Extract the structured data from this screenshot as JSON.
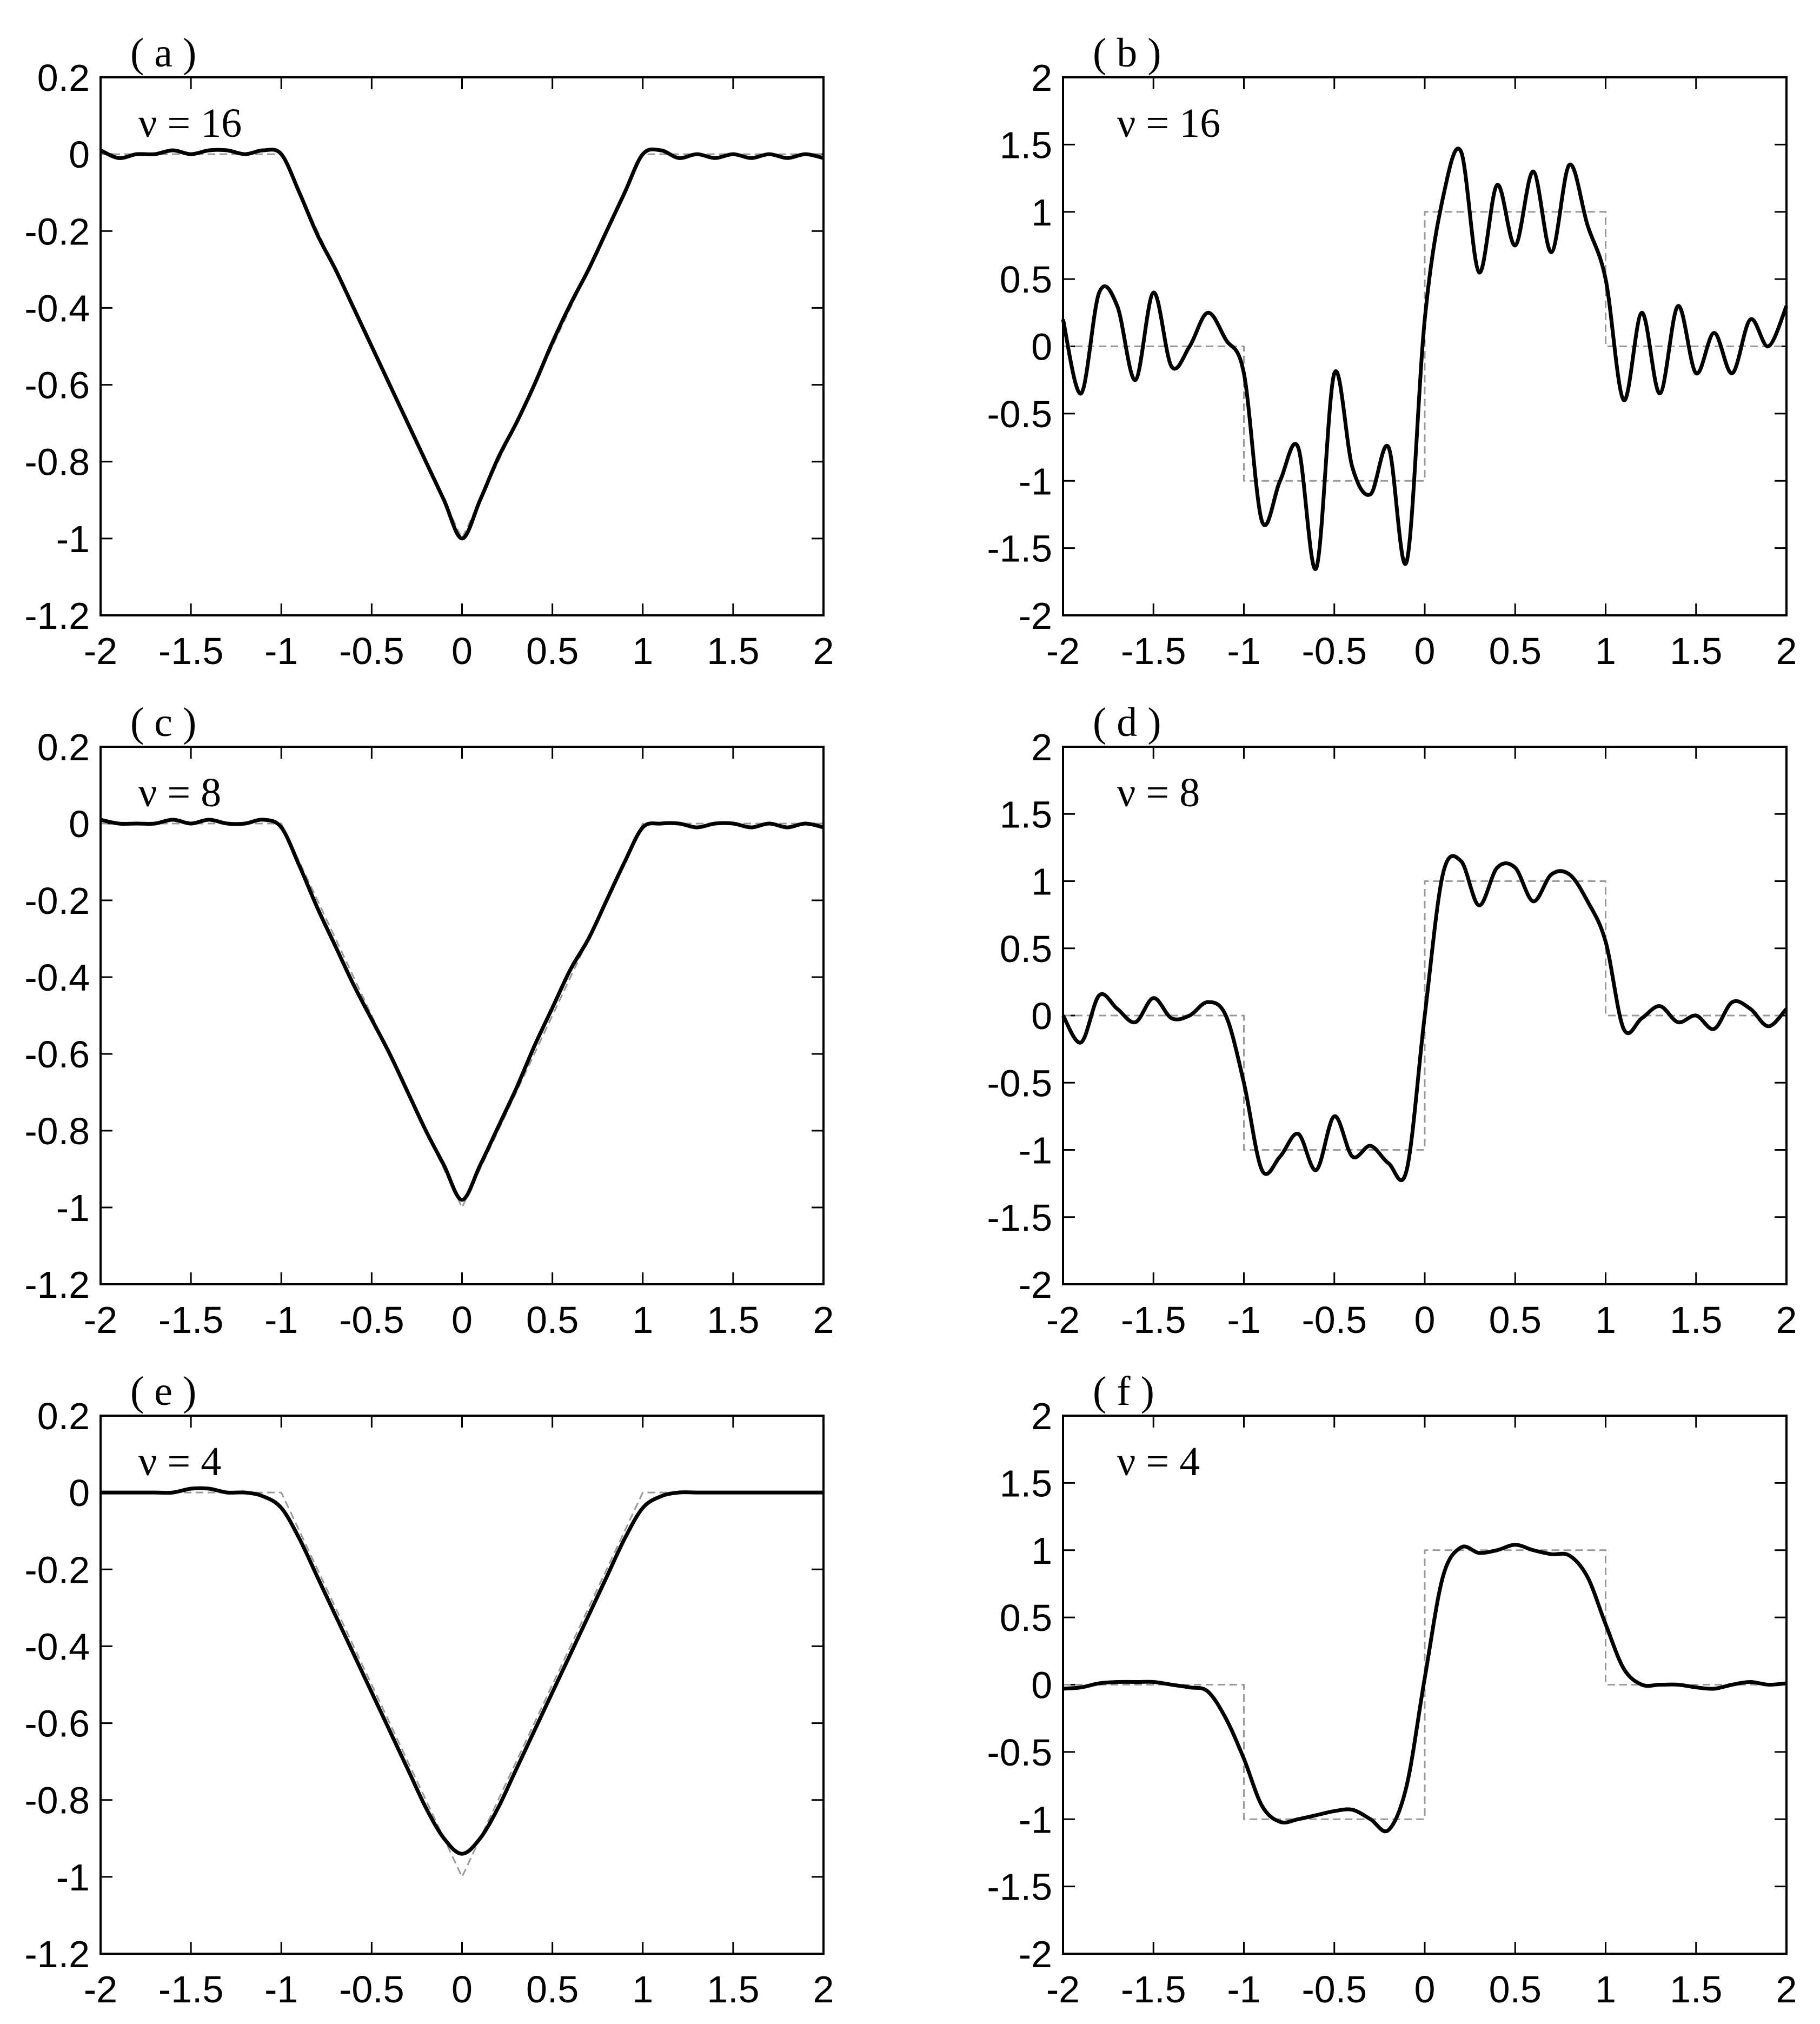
{
  "chart_data": [
    {
      "type": "line",
      "title": "( a )",
      "annotation": "ν = 16",
      "xlim": [
        -2,
        2
      ],
      "xticks": [
        -2,
        -1.5,
        -1,
        -0.5,
        0,
        0.5,
        1,
        1.5,
        2
      ],
      "ylim": [
        -1.2,
        0.2
      ],
      "yticks": [
        -1.2,
        -1,
        -0.8,
        -0.6,
        -0.4,
        -0.2,
        0,
        0.2
      ],
      "series": [
        {
          "color": "#999999",
          "linestyle": "dashed",
          "x": [
            -2,
            -1,
            0,
            1,
            2
          ],
          "values": [
            0,
            0,
            -1,
            0,
            0
          ]
        },
        {
          "color": "#000000",
          "linestyle": "solid",
          "x": [
            -2,
            -1.9,
            -1.8,
            -1.7,
            -1.6,
            -1.5,
            -1.4,
            -1.3,
            -1.2,
            -1.1,
            -1,
            -0.9,
            -0.8,
            -0.7,
            -0.6,
            -0.5,
            -0.4,
            -0.3,
            -0.2,
            -0.1,
            0,
            0.1,
            0.2,
            0.3,
            0.4,
            0.5,
            0.6,
            0.7,
            0.8,
            0.9,
            1,
            1.1,
            1.2,
            1.3,
            1.4,
            1.5,
            1.6,
            1.7,
            1.8,
            1.9,
            2
          ],
          "values": [
            0.01,
            -0.01,
            0,
            0,
            0.01,
            0,
            0.01,
            0.01,
            0,
            0.01,
            0,
            -0.1,
            -0.21,
            -0.3,
            -0.4,
            -0.5,
            -0.6,
            -0.7,
            -0.8,
            -0.9,
            -1,
            -0.9,
            -0.79,
            -0.7,
            -0.6,
            -0.49,
            -0.39,
            -0.3,
            -0.2,
            -0.1,
            0,
            0.01,
            -0.01,
            0,
            -0.01,
            0,
            -0.01,
            0,
            -0.01,
            0,
            -0.01
          ]
        }
      ]
    },
    {
      "type": "line",
      "title": "( b )",
      "annotation": "ν = 16",
      "xlim": [
        -2,
        2
      ],
      "xticks": [
        -2,
        -1.5,
        -1,
        -0.5,
        0,
        0.5,
        1,
        1.5,
        2
      ],
      "ylim": [
        -2,
        2
      ],
      "yticks": [
        -2,
        -1.5,
        -1,
        -0.5,
        0,
        0.5,
        1,
        1.5,
        2
      ],
      "series": [
        {
          "color": "#999999",
          "linestyle": "dashed",
          "x": [
            -2,
            -1,
            -1,
            0,
            0,
            1,
            1,
            2
          ],
          "values": [
            0,
            0,
            -1,
            -1,
            1,
            1,
            0,
            0
          ]
        },
        {
          "color": "#000000",
          "linestyle": "solid",
          "x": [
            -2,
            -1.9,
            -1.8,
            -1.7,
            -1.6,
            -1.5,
            -1.4,
            -1.3,
            -1.2,
            -1.1,
            -1,
            -0.9,
            -0.8,
            -0.7,
            -0.6,
            -0.5,
            -0.4,
            -0.3,
            -0.2,
            -0.1,
            0,
            0.1,
            0.2,
            0.3,
            0.4,
            0.5,
            0.6,
            0.7,
            0.8,
            0.9,
            1,
            1.1,
            1.2,
            1.3,
            1.4,
            1.5,
            1.6,
            1.7,
            1.8,
            1.9,
            2
          ],
          "values": [
            0.2,
            -0.35,
            0.4,
            0.3,
            -0.25,
            0.4,
            -0.15,
            0,
            0.25,
            0.05,
            -0.2,
            -1.3,
            -1,
            -0.75,
            -1.65,
            -0.2,
            -0.9,
            -1.1,
            -0.75,
            -1.6,
            0.2,
            1.1,
            1.45,
            0.55,
            1.2,
            0.75,
            1.3,
            0.7,
            1.35,
            0.9,
            0.5,
            -0.4,
            0.25,
            -0.35,
            0.3,
            -0.2,
            0.1,
            -0.2,
            0.2,
            0,
            0.3
          ]
        }
      ]
    },
    {
      "type": "line",
      "title": "( c )",
      "annotation": "ν = 8",
      "xlim": [
        -2,
        2
      ],
      "xticks": [
        -2,
        -1.5,
        -1,
        -0.5,
        0,
        0.5,
        1,
        1.5,
        2
      ],
      "ylim": [
        -1.2,
        0.2
      ],
      "yticks": [
        -1.2,
        -1,
        -0.8,
        -0.6,
        -0.4,
        -0.2,
        0,
        0.2
      ],
      "series": [
        {
          "color": "#999999",
          "linestyle": "dashed",
          "x": [
            -2,
            -1,
            0,
            1,
            2
          ],
          "values": [
            0,
            0,
            -1,
            0,
            0
          ]
        },
        {
          "color": "#000000",
          "linestyle": "solid",
          "x": [
            -2,
            -1.9,
            -1.8,
            -1.7,
            -1.6,
            -1.5,
            -1.4,
            -1.3,
            -1.2,
            -1.1,
            -1,
            -0.9,
            -0.8,
            -0.7,
            -0.6,
            -0.5,
            -0.4,
            -0.3,
            -0.2,
            -0.1,
            0,
            0.1,
            0.2,
            0.3,
            0.4,
            0.5,
            0.6,
            0.7,
            0.8,
            0.9,
            1,
            1.1,
            1.2,
            1.3,
            1.4,
            1.5,
            1.6,
            1.7,
            1.8,
            1.9,
            2
          ],
          "values": [
            0.01,
            0,
            0,
            0,
            0.01,
            0,
            0.01,
            0,
            0,
            0.01,
            -0.01,
            -0.11,
            -0.22,
            -0.32,
            -0.42,
            -0.51,
            -0.6,
            -0.7,
            -0.8,
            -0.89,
            -0.98,
            -0.89,
            -0.79,
            -0.69,
            -0.58,
            -0.48,
            -0.38,
            -0.3,
            -0.2,
            -0.1,
            -0.01,
            0,
            0,
            -0.01,
            0,
            0,
            -0.01,
            0,
            -0.01,
            0,
            -0.01
          ]
        }
      ]
    },
    {
      "type": "line",
      "title": "( d )",
      "annotation": "ν = 8",
      "xlim": [
        -2,
        2
      ],
      "xticks": [
        -2,
        -1.5,
        -1,
        -0.5,
        0,
        0.5,
        1,
        1.5,
        2
      ],
      "ylim": [
        -2,
        2
      ],
      "yticks": [
        -2,
        -1.5,
        -1,
        -0.5,
        0,
        0.5,
        1,
        1.5,
        2
      ],
      "series": [
        {
          "color": "#999999",
          "linestyle": "dashed",
          "x": [
            -2,
            -1,
            -1,
            0,
            0,
            1,
            1,
            2
          ],
          "values": [
            0,
            0,
            -1,
            -1,
            1,
            1,
            0,
            0
          ]
        },
        {
          "color": "#000000",
          "linestyle": "solid",
          "x": [
            -2,
            -1.9,
            -1.8,
            -1.7,
            -1.6,
            -1.5,
            -1.4,
            -1.3,
            -1.2,
            -1.1,
            -1,
            -0.9,
            -0.8,
            -0.7,
            -0.6,
            -0.5,
            -0.4,
            -0.3,
            -0.2,
            -0.1,
            0,
            0.1,
            0.2,
            0.3,
            0.4,
            0.5,
            0.6,
            0.7,
            0.8,
            0.9,
            1,
            1.1,
            1.2,
            1.3,
            1.4,
            1.5,
            1.6,
            1.7,
            1.8,
            1.9,
            2
          ],
          "values": [
            0,
            -0.2,
            0.15,
            0.05,
            -0.05,
            0.13,
            -0.02,
            0,
            0.1,
            0,
            -0.5,
            -1.15,
            -1.05,
            -0.88,
            -1.15,
            -0.75,
            -1.05,
            -0.97,
            -1.1,
            -1.15,
            0,
            1.05,
            1.15,
            0.82,
            1.1,
            1.1,
            0.85,
            1.05,
            1.05,
            0.85,
            0.55,
            -0.1,
            -0.02,
            0.07,
            -0.05,
            0,
            -0.1,
            0.1,
            0.05,
            -0.08,
            0.05
          ]
        }
      ]
    },
    {
      "type": "line",
      "title": "( e )",
      "annotation": "ν = 4",
      "xlim": [
        -2,
        2
      ],
      "xticks": [
        -2,
        -1.5,
        -1,
        -0.5,
        0,
        0.5,
        1,
        1.5,
        2
      ],
      "ylim": [
        -1.2,
        0.2
      ],
      "yticks": [
        -1.2,
        -1,
        -0.8,
        -0.6,
        -0.4,
        -0.2,
        0,
        0.2
      ],
      "series": [
        {
          "color": "#999999",
          "linestyle": "dashed",
          "x": [
            -2,
            -1,
            0,
            1,
            2
          ],
          "values": [
            0,
            0,
            -1,
            0,
            0
          ]
        },
        {
          "color": "#000000",
          "linestyle": "solid",
          "x": [
            -2,
            -1.9,
            -1.8,
            -1.7,
            -1.6,
            -1.5,
            -1.4,
            -1.3,
            -1.2,
            -1.1,
            -1,
            -0.9,
            -0.8,
            -0.7,
            -0.6,
            -0.5,
            -0.4,
            -0.3,
            -0.2,
            -0.1,
            0,
            0.1,
            0.2,
            0.3,
            0.4,
            0.5,
            0.6,
            0.7,
            0.8,
            0.9,
            1,
            1.1,
            1.2,
            1.3,
            1.4,
            1.5,
            1.6,
            1.7,
            1.8,
            1.9,
            2
          ],
          "values": [
            0,
            0,
            0,
            0,
            0,
            0.01,
            0.01,
            0,
            0,
            -0.01,
            -0.04,
            -0.12,
            -0.22,
            -0.32,
            -0.42,
            -0.52,
            -0.62,
            -0.72,
            -0.82,
            -0.9,
            -0.94,
            -0.9,
            -0.82,
            -0.72,
            -0.62,
            -0.52,
            -0.42,
            -0.32,
            -0.22,
            -0.12,
            -0.04,
            -0.01,
            0,
            0,
            0,
            0,
            0,
            0,
            0,
            0,
            0
          ]
        }
      ]
    },
    {
      "type": "line",
      "title": "( f )",
      "annotation": "ν = 4",
      "xlim": [
        -2,
        2
      ],
      "xticks": [
        -2,
        -1.5,
        -1,
        -0.5,
        0,
        0.5,
        1,
        1.5,
        2
      ],
      "ylim": [
        -2,
        2
      ],
      "yticks": [
        -2,
        -1.5,
        -1,
        -0.5,
        0,
        0.5,
        1,
        1.5,
        2
      ],
      "series": [
        {
          "color": "#999999",
          "linestyle": "dashed",
          "x": [
            -2,
            -1,
            -1,
            0,
            0,
            1,
            1,
            2
          ],
          "values": [
            0,
            0,
            -1,
            -1,
            1,
            1,
            0,
            0
          ]
        },
        {
          "color": "#000000",
          "linestyle": "solid",
          "x": [
            -2,
            -1.9,
            -1.8,
            -1.7,
            -1.6,
            -1.5,
            -1.4,
            -1.3,
            -1.2,
            -1.1,
            -1,
            -0.9,
            -0.8,
            -0.7,
            -0.6,
            -0.5,
            -0.4,
            -0.3,
            -0.2,
            -0.1,
            0,
            0.1,
            0.2,
            0.3,
            0.4,
            0.5,
            0.6,
            0.7,
            0.8,
            0.9,
            1,
            1.1,
            1.2,
            1.3,
            1.4,
            1.5,
            1.6,
            1.7,
            1.8,
            1.9,
            2
          ],
          "values": [
            -0.03,
            -0.02,
            0.01,
            0.02,
            0.02,
            0.02,
            0,
            -0.02,
            -0.05,
            -0.25,
            -0.55,
            -0.9,
            -1.02,
            -1,
            -0.97,
            -0.94,
            -0.93,
            -1,
            -1.08,
            -0.75,
            0.05,
            0.8,
            1.02,
            0.98,
            1,
            1.04,
            1,
            0.97,
            0.96,
            0.8,
            0.45,
            0.12,
            0,
            0,
            0,
            -0.02,
            -0.03,
            0,
            0.02,
            0,
            0.01
          ]
        }
      ]
    }
  ]
}
